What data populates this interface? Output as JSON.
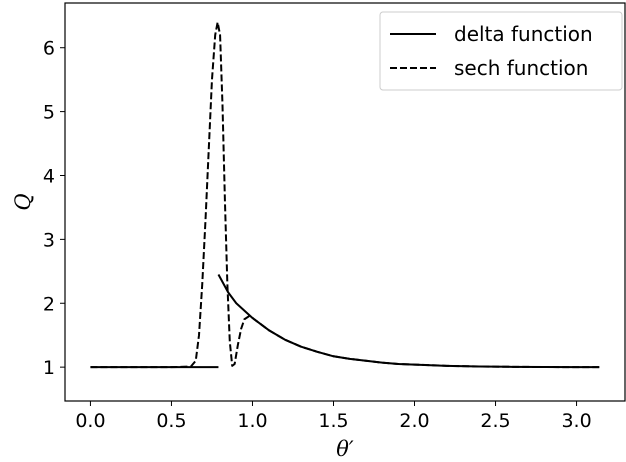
{
  "chart_data": {
    "type": "line",
    "title": "",
    "xlabel": "θ′",
    "ylabel": "Q",
    "xlim": [
      -0.157,
      3.299
    ],
    "ylim": [
      0.47,
      6.7
    ],
    "grid": false,
    "legend_position": "top-right",
    "x_ticks": [
      {
        "value": 0.0,
        "label": "0.0"
      },
      {
        "value": 0.5,
        "label": "0.5"
      },
      {
        "value": 1.0,
        "label": "1.0"
      },
      {
        "value": 1.5,
        "label": "1.5"
      },
      {
        "value": 2.0,
        "label": "2.0"
      },
      {
        "value": 2.5,
        "label": "2.5"
      },
      {
        "value": 3.0,
        "label": "3.0"
      }
    ],
    "y_ticks": [
      {
        "value": 1,
        "label": "1"
      },
      {
        "value": 2,
        "label": "2"
      },
      {
        "value": 3,
        "label": "3"
      },
      {
        "value": 4,
        "label": "4"
      },
      {
        "value": 5,
        "label": "5"
      },
      {
        "value": 6,
        "label": "6"
      }
    ],
    "series": [
      {
        "name": "delta function",
        "style": "solid",
        "color": "#000000",
        "segments": [
          [
            [
              0.0,
              1.0
            ],
            [
              0.2,
              1.0
            ],
            [
              0.4,
              1.0
            ],
            [
              0.6,
              1.0
            ],
            [
              0.79,
              1.0
            ]
          ],
          [
            [
              0.79,
              2.45
            ],
            [
              0.85,
              2.17
            ],
            [
              0.9,
              2.0
            ],
            [
              1.0,
              1.77
            ],
            [
              1.1,
              1.58
            ],
            [
              1.2,
              1.43
            ],
            [
              1.3,
              1.32
            ],
            [
              1.4,
              1.24
            ],
            [
              1.5,
              1.17
            ],
            [
              1.6,
              1.13
            ],
            [
              1.7,
              1.1
            ],
            [
              1.8,
              1.07
            ],
            [
              1.9,
              1.05
            ],
            [
              2.0,
              1.04
            ],
            [
              2.2,
              1.02
            ],
            [
              2.4,
              1.01
            ],
            [
              2.6,
              1.005
            ],
            [
              2.8,
              1.002
            ],
            [
              3.0,
              1.0
            ],
            [
              3.14,
              1.0
            ]
          ]
        ]
      },
      {
        "name": "sech function",
        "style": "dashed",
        "color": "#000000",
        "segments": [
          [
            [
              0.0,
              1.0
            ],
            [
              0.3,
              1.0
            ],
            [
              0.5,
              1.0
            ],
            [
              0.62,
              1.01
            ],
            [
              0.65,
              1.1
            ],
            [
              0.67,
              1.5
            ],
            [
              0.69,
              2.3
            ],
            [
              0.71,
              3.3
            ],
            [
              0.73,
              4.4
            ],
            [
              0.75,
              5.5
            ],
            [
              0.77,
              6.2
            ],
            [
              0.785,
              6.4
            ],
            [
              0.8,
              6.2
            ],
            [
              0.815,
              5.1
            ],
            [
              0.83,
              3.6
            ],
            [
              0.845,
              2.3
            ],
            [
              0.86,
              1.4
            ],
            [
              0.875,
              1.02
            ],
            [
              0.89,
              1.05
            ],
            [
              0.91,
              1.35
            ],
            [
              0.93,
              1.6
            ],
            [
              0.95,
              1.75
            ],
            [
              0.98,
              1.8
            ],
            [
              1.0,
              1.77
            ],
            [
              1.1,
              1.58
            ],
            [
              1.2,
              1.43
            ],
            [
              1.3,
              1.32
            ],
            [
              1.4,
              1.24
            ],
            [
              1.5,
              1.17
            ],
            [
              1.6,
              1.13
            ],
            [
              1.7,
              1.1
            ],
            [
              1.8,
              1.07
            ],
            [
              1.9,
              1.05
            ],
            [
              2.0,
              1.04
            ],
            [
              2.2,
              1.02
            ],
            [
              2.4,
              1.01
            ],
            [
              2.6,
              1.005
            ],
            [
              2.8,
              1.002
            ],
            [
              3.0,
              1.0
            ],
            [
              3.14,
              1.0
            ]
          ]
        ]
      }
    ]
  }
}
